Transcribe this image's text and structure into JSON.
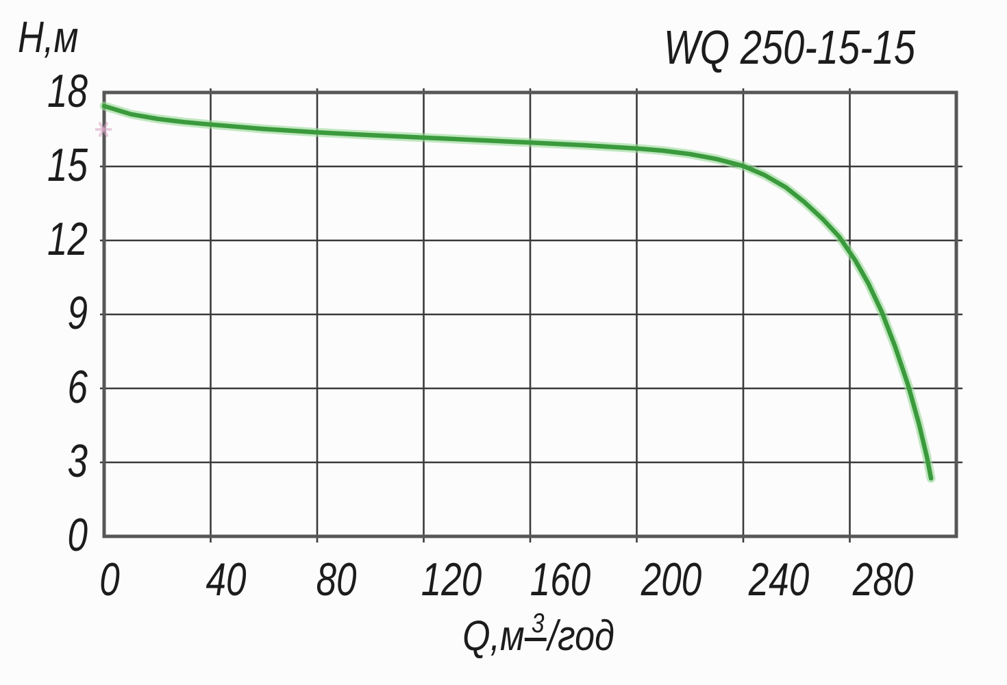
{
  "title": "WQ 250-15-15",
  "axes": {
    "y_title": "Н,м",
    "x_title_prefix": "Q,м",
    "x_title_sup": "3",
    "x_title_suffix": "/год"
  },
  "colors": {
    "background": "#fcfcfc",
    "text": "#1c1c1c",
    "grid": "#3a3a3a",
    "border": "#575757",
    "curve": "#3a9a3c",
    "curve_glow": "#97d897",
    "pink_mark": "#d9a6c4"
  },
  "pink_mark": {
    "q": 0,
    "h": 16.5
  },
  "chart_data": {
    "type": "line",
    "title": "WQ 250-15-15",
    "xlabel": "Q, м3/год",
    "ylabel": "Н, м",
    "xlim": [
      0,
      320
    ],
    "ylim": [
      0,
      18
    ],
    "x_ticks": [
      0,
      40,
      80,
      120,
      160,
      200,
      240,
      280
    ],
    "y_ticks": [
      18,
      15,
      12,
      9,
      6,
      3,
      0
    ],
    "x_grid_step": 40,
    "y_grid_step": 3,
    "grid": true,
    "legend_position": "none",
    "series": [
      {
        "name": "WQ 250-15-15 head-flow curve",
        "color": "#3a9a3c",
        "points": [
          [
            0,
            17.45
          ],
          [
            10,
            17.12
          ],
          [
            20,
            16.93
          ],
          [
            30,
            16.8
          ],
          [
            40,
            16.7
          ],
          [
            60,
            16.52
          ],
          [
            80,
            16.38
          ],
          [
            100,
            16.27
          ],
          [
            120,
            16.17
          ],
          [
            140,
            16.07
          ],
          [
            160,
            15.97
          ],
          [
            180,
            15.86
          ],
          [
            200,
            15.73
          ],
          [
            210,
            15.64
          ],
          [
            220,
            15.5
          ],
          [
            230,
            15.3
          ],
          [
            240,
            15.02
          ],
          [
            248,
            14.65
          ],
          [
            256,
            14.15
          ],
          [
            263,
            13.55
          ],
          [
            270,
            12.85
          ],
          [
            276,
            12.15
          ],
          [
            282,
            11.2
          ],
          [
            287,
            10.25
          ],
          [
            292,
            9.1
          ],
          [
            297,
            7.7
          ],
          [
            302,
            6.1
          ],
          [
            306,
            4.55
          ],
          [
            309,
            3.2
          ],
          [
            310.5,
            2.35
          ]
        ]
      }
    ]
  }
}
